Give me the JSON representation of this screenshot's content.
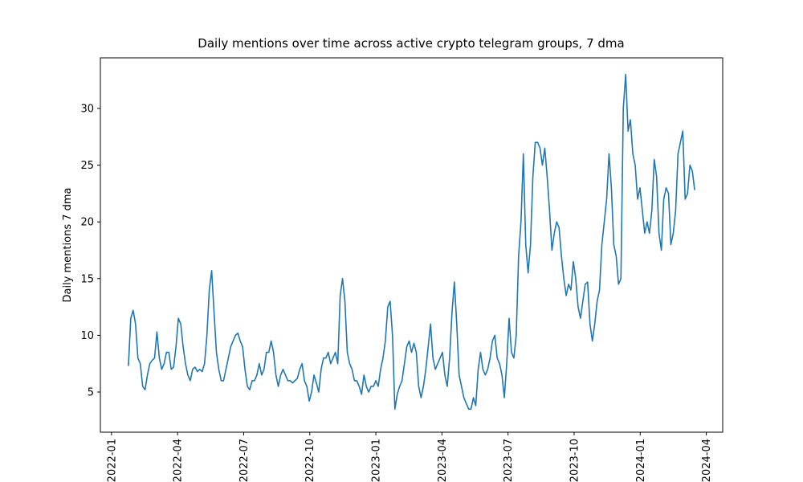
{
  "chart_data": {
    "type": "line",
    "title": "Daily mentions over time across active crypto telegram groups, 7 dma",
    "y_label": "Daily mentions 7 dma",
    "color": "#1f77b4",
    "grid": false,
    "xlim": [
      2021.958,
      2024.312
    ],
    "ylim": [
      1.46,
      34.46
    ],
    "xticks": [
      {
        "value": 2022.0,
        "label": "2022-01"
      },
      {
        "value": 2022.25,
        "label": "2022-04"
      },
      {
        "value": 2022.5,
        "label": "2022-07"
      },
      {
        "value": 2022.75,
        "label": "2022-10"
      },
      {
        "value": 2023.0,
        "label": "2023-01"
      },
      {
        "value": 2023.25,
        "label": "2023-04"
      },
      {
        "value": 2023.5,
        "label": "2023-07"
      },
      {
        "value": 2023.75,
        "label": "2023-10"
      },
      {
        "value": 2024.0,
        "label": "2024-01"
      },
      {
        "value": 2024.25,
        "label": "2024-04"
      }
    ],
    "yticks": [
      5,
      10,
      15,
      20,
      25,
      30
    ],
    "x": [
      2022.064,
      2022.073,
      2022.082,
      2022.091,
      2022.1,
      2022.109,
      2022.118,
      2022.127,
      2022.136,
      2022.145,
      2022.154,
      2022.163,
      2022.172,
      2022.181,
      2022.19,
      2022.199,
      2022.208,
      2022.217,
      2022.226,
      2022.235,
      2022.244,
      2022.253,
      2022.262,
      2022.271,
      2022.28,
      2022.289,
      2022.298,
      2022.307,
      2022.316,
      2022.325,
      2022.334,
      2022.343,
      2022.352,
      2022.361,
      2022.37,
      2022.379,
      2022.388,
      2022.397,
      2022.406,
      2022.415,
      2022.424,
      2022.433,
      2022.442,
      2022.451,
      2022.46,
      2022.469,
      2022.478,
      2022.487,
      2022.496,
      2022.505,
      2022.514,
      2022.523,
      2022.532,
      2022.541,
      2022.55,
      2022.559,
      2022.568,
      2022.577,
      2022.586,
      2022.595,
      2022.604,
      2022.613,
      2022.622,
      2022.631,
      2022.64,
      2022.649,
      2022.658,
      2022.667,
      2022.676,
      2022.685,
      2022.694,
      2022.703,
      2022.712,
      2022.721,
      2022.73,
      2022.739,
      2022.748,
      2022.757,
      2022.766,
      2022.775,
      2022.784,
      2022.793,
      2022.802,
      2022.811,
      2022.82,
      2022.829,
      2022.838,
      2022.847,
      2022.856,
      2022.865,
      2022.874,
      2022.883,
      2022.892,
      2022.901,
      2022.91,
      2022.919,
      2022.928,
      2022.937,
      2022.946,
      2022.955,
      2022.964,
      2022.973,
      2022.982,
      2022.991,
      2023.0,
      2023.009,
      2023.018,
      2023.027,
      2023.036,
      2023.045,
      2023.054,
      2023.063,
      2023.072,
      2023.081,
      2023.09,
      2023.099,
      2023.108,
      2023.117,
      2023.126,
      2023.135,
      2023.144,
      2023.153,
      2023.162,
      2023.171,
      2023.18,
      2023.189,
      2023.198,
      2023.207,
      2023.216,
      2023.225,
      2023.234,
      2023.243,
      2023.252,
      2023.261,
      2023.27,
      2023.279,
      2023.288,
      2023.297,
      2023.306,
      2023.315,
      2023.324,
      2023.333,
      2023.342,
      2023.351,
      2023.36,
      2023.369,
      2023.378,
      2023.387,
      2023.396,
      2023.405,
      2023.414,
      2023.423,
      2023.432,
      2023.441,
      2023.45,
      2023.459,
      2023.468,
      2023.477,
      2023.486,
      2023.495,
      2023.504,
      2023.513,
      2023.522,
      2023.531,
      2023.54,
      2023.549,
      2023.558,
      2023.567,
      2023.576,
      2023.585,
      2023.594,
      2023.603,
      2023.612,
      2023.621,
      2023.63,
      2023.639,
      2023.648,
      2023.657,
      2023.666,
      2023.675,
      2023.684,
      2023.693,
      2023.702,
      2023.711,
      2023.72,
      2023.729,
      2023.738,
      2023.747,
      2023.756,
      2023.765,
      2023.774,
      2023.783,
      2023.792,
      2023.801,
      2023.81,
      2023.819,
      2023.828,
      2023.837,
      2023.846,
      2023.855,
      2023.864,
      2023.873,
      2023.882,
      2023.891,
      2023.9,
      2023.909,
      2023.918,
      2023.927,
      2023.936,
      2023.945,
      2023.954,
      2023.963,
      2023.972,
      2023.981,
      2023.99,
      2023.999,
      2024.008,
      2024.017,
      2024.026,
      2024.035,
      2024.044,
      2024.053,
      2024.062,
      2024.071,
      2024.08,
      2024.089,
      2024.098,
      2024.107,
      2024.116,
      2024.125,
      2024.134,
      2024.143,
      2024.152,
      2024.161,
      2024.17,
      2024.179,
      2024.188,
      2024.197,
      2024.206
    ],
    "values": [
      7.3,
      11.5,
      12.2,
      11,
      8,
      7.5,
      5.5,
      5.2,
      6.5,
      7.5,
      7.8,
      8,
      10.3,
      8,
      7,
      7.5,
      8.5,
      8.5,
      7,
      7.2,
      9,
      11.5,
      11,
      9,
      7.5,
      6.5,
      6,
      7,
      7.2,
      6.8,
      7,
      6.8,
      7.5,
      10,
      14,
      15.7,
      12,
      8.5,
      7,
      6,
      6,
      7,
      8,
      9,
      9.5,
      10,
      10.2,
      9.5,
      9,
      7,
      5.5,
      5.2,
      6,
      6,
      6.5,
      7.5,
      6.5,
      7,
      8.5,
      8.5,
      9.5,
      8.5,
      6.5,
      5.5,
      6.5,
      7,
      6.5,
      6,
      6,
      5.8,
      6,
      6.2,
      7,
      7.5,
      6,
      5.5,
      4.2,
      5,
      6.5,
      5.8,
      5,
      7,
      8,
      8,
      8.5,
      7.5,
      8,
      8.5,
      7.5,
      13.5,
      15,
      13,
      8.5,
      7.5,
      7,
      6,
      6,
      5.5,
      4.8,
      6.5,
      5.5,
      5,
      5.5,
      5.5,
      6,
      5.5,
      7,
      8,
      9.5,
      12.5,
      13,
      10,
      3.5,
      4.8,
      5.5,
      6,
      7.5,
      9,
      9.5,
      8.5,
      9.3,
      8.5,
      5.5,
      4.5,
      5.5,
      7,
      9,
      11,
      8,
      7,
      7.5,
      8,
      8.5,
      6.5,
      5.5,
      8,
      12,
      14.7,
      11,
      6.5,
      5.5,
      4.5,
      4,
      3.5,
      3.5,
      4.5,
      3.8,
      7,
      8.5,
      7,
      6.5,
      7,
      8,
      9.5,
      10,
      8,
      7.5,
      6.5,
      4.5,
      7.5,
      11.5,
      8.5,
      8,
      10,
      17,
      20,
      26,
      18,
      15.5,
      18,
      24,
      27,
      27,
      26.5,
      25,
      26.5,
      24,
      21,
      17.5,
      19,
      20,
      19.5,
      17,
      15,
      13.5,
      14.5,
      14,
      16.5,
      15,
      12.5,
      11.5,
      13,
      14.5,
      14.7,
      11,
      9.5,
      11,
      13,
      14,
      18,
      20,
      22,
      26,
      23,
      18,
      17,
      14.5,
      15,
      30,
      33,
      28,
      29,
      26,
      25,
      22,
      23,
      21,
      19,
      20,
      19,
      21,
      25.5,
      24,
      19,
      17.5,
      22,
      23,
      22.5,
      18,
      19,
      21,
      26,
      27,
      28,
      22,
      22.5,
      25,
      24.5,
      22.8
    ]
  }
}
